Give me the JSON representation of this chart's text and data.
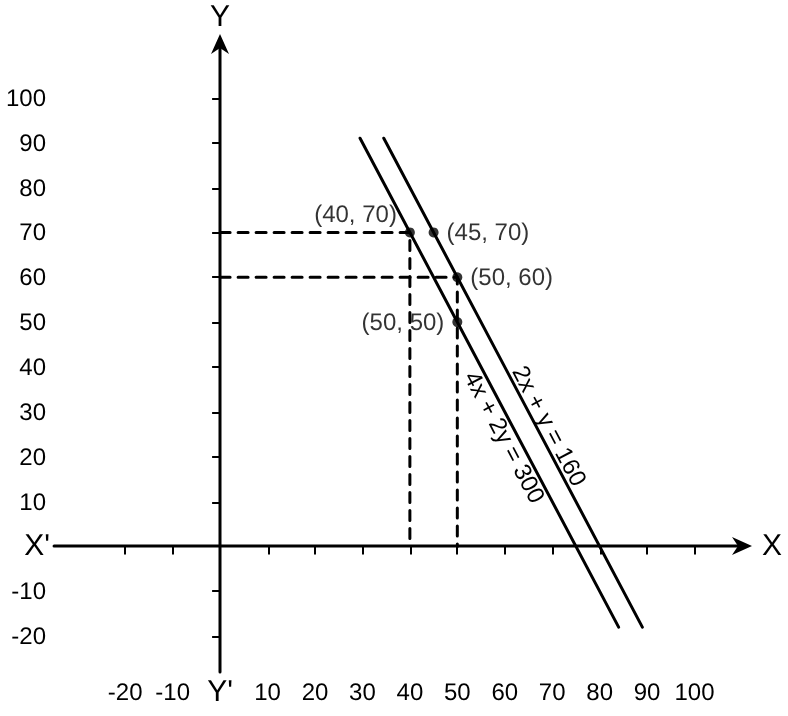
{
  "chart_data": {
    "type": "line",
    "xlabel": "X",
    "ylabel": "Y",
    "annotations": [
      "X'",
      "Y'"
    ],
    "xlim": [
      -35,
      110
    ],
    "ylim": [
      -28,
      112
    ],
    "xticks": [
      -20,
      -10,
      10,
      20,
      30,
      40,
      50,
      60,
      70,
      80,
      90,
      100
    ],
    "yticks": [
      -20,
      -10,
      10,
      20,
      30,
      40,
      50,
      60,
      70,
      80,
      90,
      100
    ],
    "grid": false,
    "legend": false,
    "series": [
      {
        "name": "2x + y = 160",
        "color": "#000000",
        "x": [
          34.5,
          89
        ],
        "values": [
          91,
          -18
        ],
        "marker": "none",
        "line_style": "solid"
      },
      {
        "name": "4x + 2y = 300",
        "color": "#000000",
        "x": [
          29.5,
          84
        ],
        "values": [
          91,
          -18
        ],
        "marker": "none",
        "line_style": "solid"
      },
      {
        "color": "#000000",
        "x": [
          0,
          40,
          40
        ],
        "values": [
          70,
          70,
          0
        ],
        "marker": "none",
        "line_style": "dashed"
      },
      {
        "color": "#000000",
        "x": [
          0,
          50,
          50
        ],
        "values": [
          60,
          60,
          0
        ],
        "marker": "none",
        "line_style": "dashed"
      },
      {
        "type": "scatter",
        "color": "#000000",
        "x": [
          40,
          45,
          50,
          50
        ],
        "values": [
          70,
          70,
          60,
          50
        ],
        "marker": "circle",
        "value_labels": [
          "(40, 70)",
          "(45, 70)",
          "(50, 60)",
          "(50, 50)"
        ]
      }
    ]
  }
}
